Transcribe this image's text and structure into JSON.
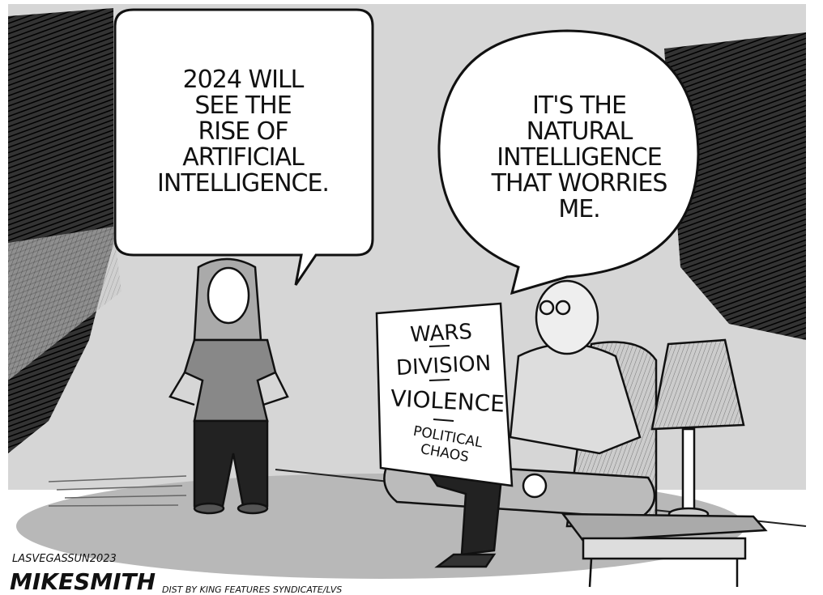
{
  "speech_bubbles": [
    {
      "lines": [
        "2024 WILL",
        "SEE THE",
        "RISE OF",
        "ARTIFICIAL",
        "INTELLIGENCE."
      ]
    },
    {
      "lines": [
        "IT'S THE",
        "NATURAL",
        "INTELLIGENCE",
        "THAT WORRIES",
        "ME."
      ]
    }
  ],
  "newspaper": {
    "headlines": [
      "WARS",
      "DIVISION",
      "VIOLENCE",
      "POLITICAL",
      "CHAOS"
    ]
  },
  "credits": {
    "publication": "LASVEGASSUN2023",
    "artist": "MIKESMITH",
    "syndicate": "DIST BY KING FEATURES SYNDICATE/LVS"
  }
}
